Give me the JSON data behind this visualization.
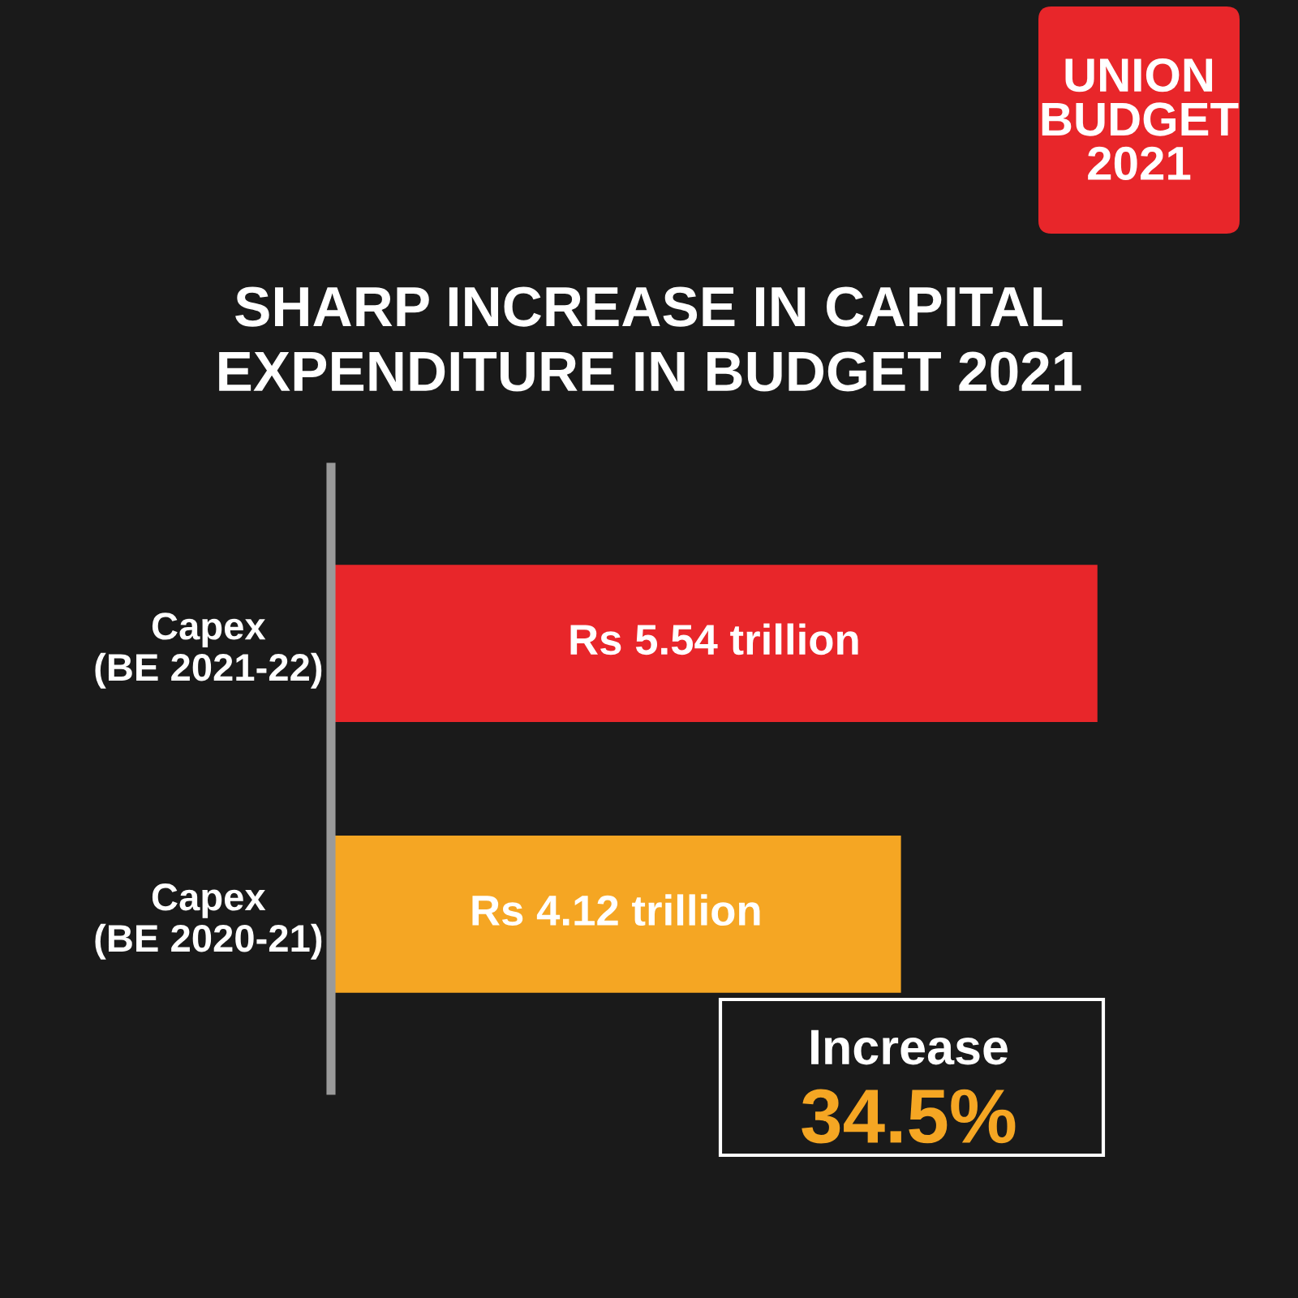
{
  "chart_data": {
    "type": "bar",
    "orientation": "horizontal",
    "title": "SHARP INCREASE IN CAPITAL\nEXPENDITURE IN BUDGET 2021",
    "categories": [
      "Capex\n(BE 2021-22)",
      "Capex\n(BE 2020-21)"
    ],
    "values": [
      5.54,
      4.12
    ],
    "colors": [
      "#e8262a",
      "#f5a623"
    ],
    "value_labels": [
      "Rs 5.54 trillion",
      "Rs 4.12 trillion"
    ],
    "annotations": [
      "UNION\nBUDGET\n2021",
      "Increase",
      "34.5%"
    ],
    "grid": false,
    "legend": false
  }
}
